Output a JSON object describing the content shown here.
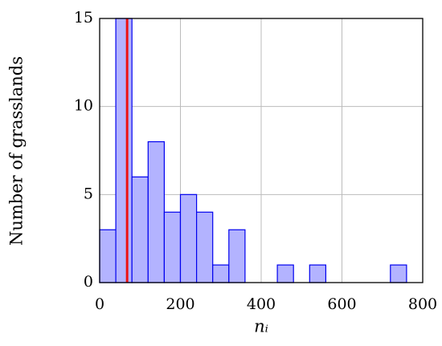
{
  "chart_data": {
    "type": "histogram",
    "xlabel": "nᵢ",
    "ylabel": "Number of grasslands",
    "bins": [
      0,
      40,
      80,
      120,
      160,
      200,
      240,
      280,
      320,
      360,
      400,
      440,
      480,
      520,
      560,
      600,
      640,
      680,
      720,
      760,
      800
    ],
    "values": [
      3,
      15,
      6,
      8,
      4,
      5,
      4,
      1,
      3,
      0,
      0,
      1,
      0,
      1,
      0,
      0,
      0,
      0,
      1,
      0
    ],
    "color": "#b3b3ff",
    "edgecolor": "#0000ee",
    "vline": 68,
    "vline_color": "#ee1111",
    "xlim": [
      0,
      800
    ],
    "xticks": [
      0,
      200,
      400,
      600,
      800
    ],
    "ylim": [
      0,
      15
    ],
    "yticks": [
      0,
      5,
      10,
      15
    ],
    "grid": true
  }
}
